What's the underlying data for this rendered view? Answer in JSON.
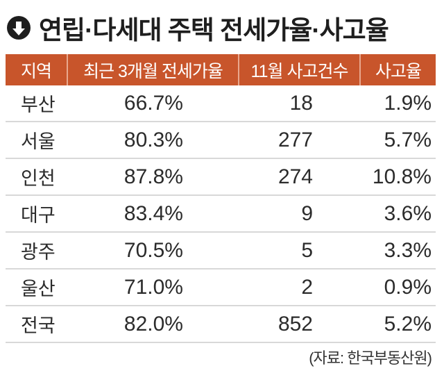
{
  "title": "연립·다세대 주택 전세가율·사고율",
  "title_icon": "arrow-down-circle-icon",
  "header_color": "#c8552b",
  "columns": [
    "지역",
    "최근 3개월 전세가율",
    "11월 사고건수",
    "사고율"
  ],
  "rows": [
    {
      "region": "부산",
      "ratio": "66.7%",
      "count": "18",
      "rate": "1.9%"
    },
    {
      "region": "서울",
      "ratio": "80.3%",
      "count": "277",
      "rate": "5.7%"
    },
    {
      "region": "인천",
      "ratio": "87.8%",
      "count": "274",
      "rate": "10.8%"
    },
    {
      "region": "대구",
      "ratio": "83.4%",
      "count": "9",
      "rate": "3.6%"
    },
    {
      "region": "광주",
      "ratio": "70.5%",
      "count": "5",
      "rate": "3.3%"
    },
    {
      "region": "울산",
      "ratio": "71.0%",
      "count": "2",
      "rate": "0.9%"
    },
    {
      "region": "전국",
      "ratio": "82.0%",
      "count": "852",
      "rate": "5.2%"
    }
  ],
  "source": "(자료: 한국부동산원)"
}
